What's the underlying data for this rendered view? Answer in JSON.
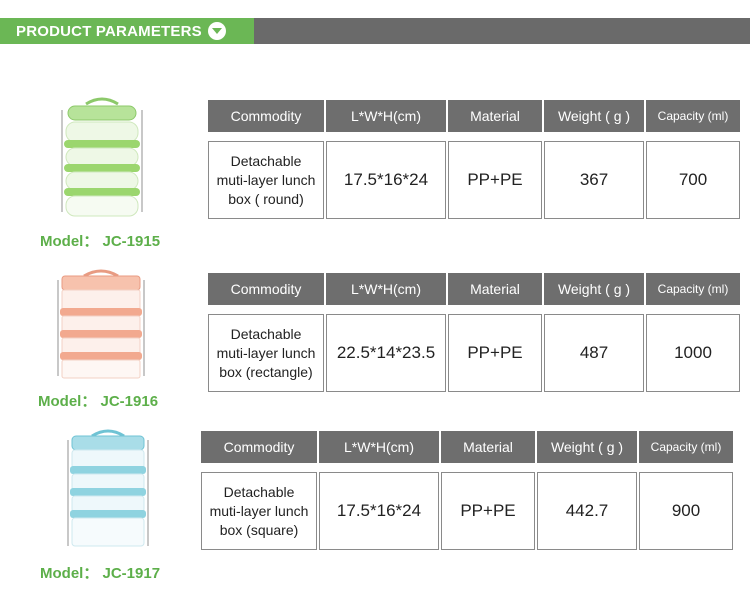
{
  "banner": {
    "title": "PRODUCT PARAMETERS",
    "accent_color": "#6bb755",
    "bar_color": "#6a6a6a",
    "icon": "chevron-down-icon"
  },
  "table_headers": {
    "commodity": "Commodity",
    "dimensions": "L*W*H(cm)",
    "material": "Material",
    "weight": "Weight ( g )",
    "capacity": "Capacity (ml)"
  },
  "products": [
    {
      "model": "Model： JC-1915",
      "image_color": "#9bd66e",
      "commodity_lines": [
        "Detachable",
        "muti-layer lunch",
        "box ( round)"
      ],
      "dimensions": "17.5*16*24",
      "material": "PP+PE",
      "weight": "367",
      "capacity": "700"
    },
    {
      "model": "Model： JC-1916",
      "image_color": "#f2a98f",
      "commodity_lines": [
        "Detachable",
        "muti-layer lunch",
        "box (rectangle)"
      ],
      "dimensions": "22.5*14*23.5",
      "material": "PP+PE",
      "weight": "487",
      "capacity": "1000"
    },
    {
      "model": "Model： JC-1917",
      "image_color": "#8fd3e0",
      "commodity_lines": [
        "Detachable",
        "muti-layer lunch",
        "box (square)"
      ],
      "dimensions": "17.5*16*24",
      "material": "PP+PE",
      "weight": "442.7",
      "capacity": "900"
    }
  ]
}
